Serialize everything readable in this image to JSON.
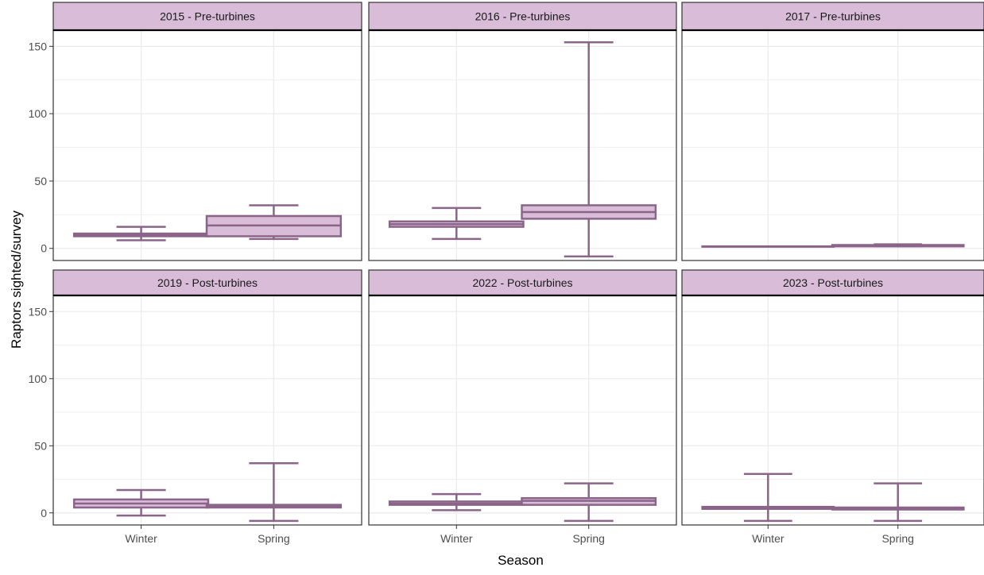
{
  "chart_data": {
    "type": "boxplot",
    "xlabel": "Season",
    "ylabel": "Raptors sighted/survey",
    "ylim": [
      -9,
      162
    ],
    "yticks": [
      0,
      50,
      100,
      150
    ],
    "categories": [
      "Winter",
      "Spring"
    ],
    "grid": true,
    "colors": {
      "box_fill": "#d8bcd8",
      "box_stroke": "#8b6589",
      "strip_fill": "#d8bcd8",
      "strip_border": "#000000",
      "panel_border": "#333333",
      "grid": "#ebebeb"
    },
    "facets": [
      {
        "title": "2015 - Pre-turbines",
        "boxes": [
          {
            "category": "Winter",
            "whisker_low": 6,
            "q1": 9,
            "median": 10,
            "q3": 11,
            "whisker_high": 16
          },
          {
            "category": "Spring",
            "whisker_low": 7,
            "q1": 9,
            "median": 17,
            "q3": 24,
            "whisker_high": 32
          }
        ]
      },
      {
        "title": "2016 - Pre-turbines",
        "boxes": [
          {
            "category": "Winter",
            "whisker_low": 7,
            "q1": 16,
            "median": 18,
            "q3": 20,
            "whisker_high": 30
          },
          {
            "category": "Spring",
            "whisker_low": -6,
            "q1": 22,
            "median": 27,
            "q3": 32,
            "whisker_high": 153
          }
        ]
      },
      {
        "title": "2017 - Pre-turbines",
        "boxes": [
          {
            "category": "Winter",
            "whisker_low": 1.5,
            "q1": 1.5,
            "median": 1.5,
            "q3": 1.5,
            "whisker_high": 1.5
          },
          {
            "category": "Spring",
            "whisker_low": 1.5,
            "q1": 1.5,
            "median": 2,
            "q3": 2.5,
            "whisker_high": 3
          }
        ]
      },
      {
        "title": "2019 - Post-turbines",
        "boxes": [
          {
            "category": "Winter",
            "whisker_low": -2,
            "q1": 4,
            "median": 7,
            "q3": 10,
            "whisker_high": 17
          },
          {
            "category": "Spring",
            "whisker_low": -6,
            "q1": 4,
            "median": 5,
            "q3": 6,
            "whisker_high": 37
          }
        ]
      },
      {
        "title": "2022 - Post-turbines",
        "boxes": [
          {
            "category": "Winter",
            "whisker_low": 2,
            "q1": 6,
            "median": 7,
            "q3": 8.5,
            "whisker_high": 14
          },
          {
            "category": "Spring",
            "whisker_low": -6,
            "q1": 6,
            "median": 9,
            "q3": 11,
            "whisker_high": 22
          }
        ]
      },
      {
        "title": "2023 - Post-turbines",
        "boxes": [
          {
            "category": "Winter",
            "whisker_low": -6,
            "q1": 3,
            "median": 3.5,
            "q3": 4.5,
            "whisker_high": 29
          },
          {
            "category": "Spring",
            "whisker_low": -6,
            "q1": 2.5,
            "median": 3,
            "q3": 4,
            "whisker_high": 22
          }
        ]
      }
    ]
  }
}
